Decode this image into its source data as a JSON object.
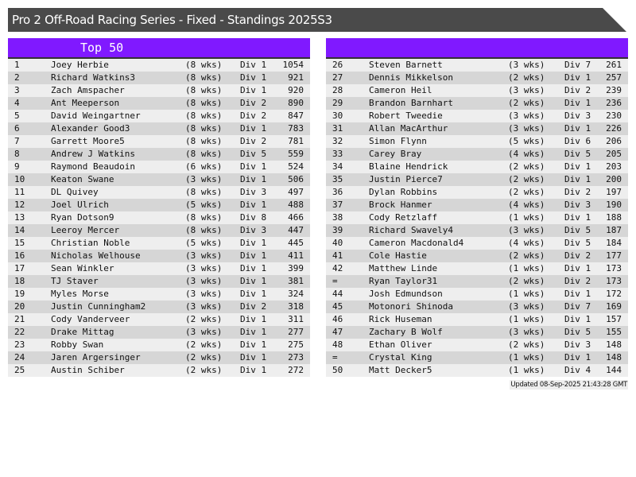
{
  "header": {
    "title": "Pro 2 Off-Road Racing Series - Fixed - Standings 2025S3"
  },
  "colors": {
    "header_bg": "#4a4a4a",
    "accent": "#8019ff",
    "row_light": "#eeeeee",
    "row_dark": "#d6d6d6"
  },
  "left_panel": {
    "title": "Top 50",
    "rows": [
      {
        "rank": "1",
        "name": "Joey Herbie",
        "weeks": "(8 wks)",
        "division": "Div 1",
        "score": "1054"
      },
      {
        "rank": "2",
        "name": "Richard Watkins3",
        "weeks": "(8 wks)",
        "division": "Div 1",
        "score": "921"
      },
      {
        "rank": "3",
        "name": "Zach Amspacher",
        "weeks": "(8 wks)",
        "division": "Div 1",
        "score": "920"
      },
      {
        "rank": "4",
        "name": "Ant Meeperson",
        "weeks": "(8 wks)",
        "division": "Div 2",
        "score": "890"
      },
      {
        "rank": "5",
        "name": "David Weingartner",
        "weeks": "(8 wks)",
        "division": "Div 2",
        "score": "847"
      },
      {
        "rank": "6",
        "name": "Alexander Good3",
        "weeks": "(8 wks)",
        "division": "Div 1",
        "score": "783"
      },
      {
        "rank": "7",
        "name": "Garrett Moore5",
        "weeks": "(8 wks)",
        "division": "Div 2",
        "score": "781"
      },
      {
        "rank": "8",
        "name": "Andrew J Watkins",
        "weeks": "(8 wks)",
        "division": "Div 5",
        "score": "559"
      },
      {
        "rank": "9",
        "name": "Raymond Beaudoin",
        "weeks": "(6 wks)",
        "division": "Div 1",
        "score": "524"
      },
      {
        "rank": "10",
        "name": "Keaton Swane",
        "weeks": "(3 wks)",
        "division": "Div 1",
        "score": "506"
      },
      {
        "rank": "11",
        "name": "DL Quivey",
        "weeks": "(8 wks)",
        "division": "Div 3",
        "score": "497"
      },
      {
        "rank": "12",
        "name": "Joel Ulrich",
        "weeks": "(5 wks)",
        "division": "Div 1",
        "score": "488"
      },
      {
        "rank": "13",
        "name": "Ryan Dotson9",
        "weeks": "(8 wks)",
        "division": "Div 8",
        "score": "466"
      },
      {
        "rank": "14",
        "name": "Leeroy Mercer",
        "weeks": "(8 wks)",
        "division": "Div 3",
        "score": "447"
      },
      {
        "rank": "15",
        "name": "Christian Noble",
        "weeks": "(5 wks)",
        "division": "Div 1",
        "score": "445"
      },
      {
        "rank": "16",
        "name": "Nicholas Welhouse",
        "weeks": "(3 wks)",
        "division": "Div 1",
        "score": "411"
      },
      {
        "rank": "17",
        "name": "Sean Winkler",
        "weeks": "(3 wks)",
        "division": "Div 1",
        "score": "399"
      },
      {
        "rank": "18",
        "name": "TJ Staver",
        "weeks": "(3 wks)",
        "division": "Div 1",
        "score": "381"
      },
      {
        "rank": "19",
        "name": "Myles Morse",
        "weeks": "(3 wks)",
        "division": "Div 1",
        "score": "324"
      },
      {
        "rank": "20",
        "name": "Justin Cunningham2",
        "weeks": "(3 wks)",
        "division": "Div 2",
        "score": "318"
      },
      {
        "rank": "21",
        "name": "Cody Vanderveer",
        "weeks": "(2 wks)",
        "division": "Div 1",
        "score": "311"
      },
      {
        "rank": "22",
        "name": "Drake Mittag",
        "weeks": "(3 wks)",
        "division": "Div 1",
        "score": "277"
      },
      {
        "rank": "23",
        "name": "Robby Swan",
        "weeks": "(2 wks)",
        "division": "Div 1",
        "score": "275"
      },
      {
        "rank": "24",
        "name": "Jaren Argersinger",
        "weeks": "(2 wks)",
        "division": "Div 1",
        "score": "273"
      },
      {
        "rank": "25",
        "name": "Austin Schiber",
        "weeks": "(2 wks)",
        "division": "Div 1",
        "score": "272"
      }
    ]
  },
  "right_panel": {
    "title": "",
    "rows": [
      {
        "rank": "26",
        "name": "Steven Barnett",
        "weeks": "(3 wks)",
        "division": "Div 7",
        "score": "261"
      },
      {
        "rank": "27",
        "name": "Dennis Mikkelson",
        "weeks": "(2 wks)",
        "division": "Div 1",
        "score": "257"
      },
      {
        "rank": "28",
        "name": "Cameron Heil",
        "weeks": "(3 wks)",
        "division": "Div 2",
        "score": "239"
      },
      {
        "rank": "29",
        "name": "Brandon Barnhart",
        "weeks": "(2 wks)",
        "division": "Div 1",
        "score": "236"
      },
      {
        "rank": "30",
        "name": "Robert Tweedie",
        "weeks": "(3 wks)",
        "division": "Div 3",
        "score": "230"
      },
      {
        "rank": "31",
        "name": "Allan MacArthur",
        "weeks": "(3 wks)",
        "division": "Div 1",
        "score": "226"
      },
      {
        "rank": "32",
        "name": "Simon Flynn",
        "weeks": "(5 wks)",
        "division": "Div 6",
        "score": "206"
      },
      {
        "rank": "33",
        "name": "Carey Bray",
        "weeks": "(4 wks)",
        "division": "Div 5",
        "score": "205"
      },
      {
        "rank": "34",
        "name": "Blaine Hendrick",
        "weeks": "(2 wks)",
        "division": "Div 1",
        "score": "203"
      },
      {
        "rank": "35",
        "name": "Justin Pierce7",
        "weeks": "(2 wks)",
        "division": "Div 1",
        "score": "200"
      },
      {
        "rank": "36",
        "name": "Dylan Robbins",
        "weeks": "(2 wks)",
        "division": "Div 2",
        "score": "197"
      },
      {
        "rank": "37",
        "name": "Brock Hanmer",
        "weeks": "(4 wks)",
        "division": "Div 3",
        "score": "190"
      },
      {
        "rank": "38",
        "name": "Cody Retzlaff",
        "weeks": "(1 wks)",
        "division": "Div 1",
        "score": "188"
      },
      {
        "rank": "39",
        "name": "Richard Swavely4",
        "weeks": "(3 wks)",
        "division": "Div 5",
        "score": "187"
      },
      {
        "rank": "40",
        "name": "Cameron Macdonald4",
        "weeks": "(4 wks)",
        "division": "Div 5",
        "score": "184"
      },
      {
        "rank": "41",
        "name": "Cole Hastie",
        "weeks": "(2 wks)",
        "division": "Div 2",
        "score": "177"
      },
      {
        "rank": "42",
        "name": "Matthew Linde",
        "weeks": "(1 wks)",
        "division": "Div 1",
        "score": "173"
      },
      {
        "rank": "=",
        "name": "Ryan Taylor31",
        "weeks": "(2 wks)",
        "division": "Div 2",
        "score": "173"
      },
      {
        "rank": "44",
        "name": "Josh Edmundson",
        "weeks": "(1 wks)",
        "division": "Div 1",
        "score": "172"
      },
      {
        "rank": "45",
        "name": "Motonori Shinoda",
        "weeks": "(3 wks)",
        "division": "Div 7",
        "score": "169"
      },
      {
        "rank": "46",
        "name": "Rick Huseman",
        "weeks": "(1 wks)",
        "division": "Div 1",
        "score": "157"
      },
      {
        "rank": "47",
        "name": "Zachary B Wolf",
        "weeks": "(3 wks)",
        "division": "Div 5",
        "score": "155"
      },
      {
        "rank": "48",
        "name": "Ethan Oliver",
        "weeks": "(2 wks)",
        "division": "Div 3",
        "score": "148"
      },
      {
        "rank": "=",
        "name": "Crystal King",
        "weeks": "(1 wks)",
        "division": "Div 1",
        "score": "148"
      },
      {
        "rank": "50",
        "name": "Matt Decker5",
        "weeks": "(1 wks)",
        "division": "Div 4",
        "score": "144"
      }
    ]
  },
  "footer": {
    "updated": "Updated 08-Sep-2025 21:43:28 GMT"
  }
}
